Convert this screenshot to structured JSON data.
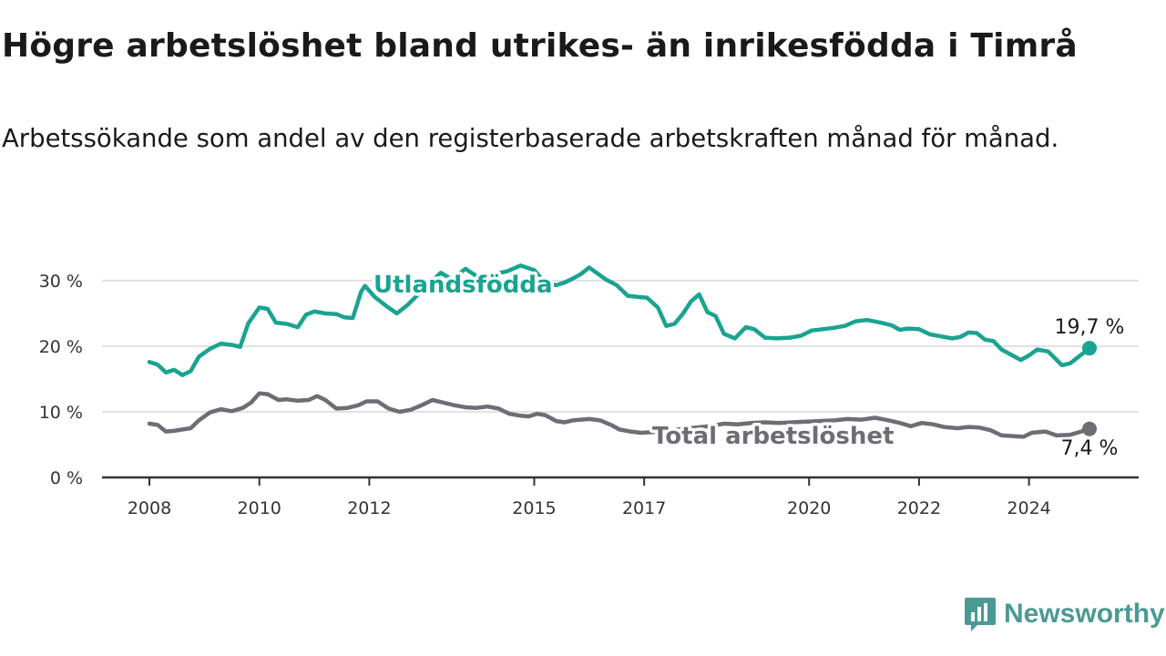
{
  "title": "Högre arbetslöshet bland utrikes- än inrikesfödda i Timrå",
  "subtitle": "Arbetssökande som andel av den registerbaserade arbetskraften månad för månad.",
  "brand": "Newsworthy",
  "colors": {
    "utlandsfodda": "#1aa391",
    "total": "#6e6d75",
    "grid": "#d9d9d9",
    "axis": "#333333",
    "brand": "#4a9a94"
  },
  "chart_data": {
    "type": "line",
    "y_ticks": [
      {
        "value": 0,
        "label": "0 %"
      },
      {
        "value": 10,
        "label": "10 %"
      },
      {
        "value": 20,
        "label": "20 %"
      },
      {
        "value": 30,
        "label": "30 %"
      }
    ],
    "x_ticks": [
      {
        "value": 2008,
        "label": "2008"
      },
      {
        "value": 2010,
        "label": "2010"
      },
      {
        "value": 2012,
        "label": "2012"
      },
      {
        "value": 2015,
        "label": "2015"
      },
      {
        "value": 2017,
        "label": "2017"
      },
      {
        "value": 2020,
        "label": "2020"
      },
      {
        "value": 2022,
        "label": "2022"
      },
      {
        "value": 2024,
        "label": "2024"
      }
    ],
    "ylim": [
      0,
      30
    ],
    "grid": true,
    "series": [
      {
        "name": "Utlandsfödda",
        "end_label": "19,7 %",
        "points": [
          [
            2008.0,
            17.6
          ],
          [
            2008.15,
            17.2
          ],
          [
            2008.3,
            16.0
          ],
          [
            2008.45,
            16.4
          ],
          [
            2008.6,
            15.6
          ],
          [
            2008.75,
            16.2
          ],
          [
            2008.9,
            18.4
          ],
          [
            2009.1,
            19.6
          ],
          [
            2009.3,
            20.4
          ],
          [
            2009.5,
            20.2
          ],
          [
            2009.65,
            19.9
          ],
          [
            2009.8,
            23.5
          ],
          [
            2010.0,
            25.9
          ],
          [
            2010.15,
            25.7
          ],
          [
            2010.3,
            23.6
          ],
          [
            2010.5,
            23.4
          ],
          [
            2010.7,
            22.9
          ],
          [
            2010.85,
            24.8
          ],
          [
            2011.0,
            25.3
          ],
          [
            2011.2,
            25.0
          ],
          [
            2011.4,
            24.9
          ],
          [
            2011.55,
            24.4
          ],
          [
            2011.7,
            24.3
          ],
          [
            2011.85,
            28.3
          ],
          [
            2011.92,
            29.2
          ],
          [
            2012.1,
            27.5
          ],
          [
            2012.3,
            26.2
          ],
          [
            2012.5,
            25.0
          ],
          [
            2012.7,
            26.3
          ],
          [
            2012.9,
            28.0
          ],
          [
            2013.1,
            29.6
          ],
          [
            2013.3,
            31.2
          ],
          [
            2013.5,
            30.2
          ],
          [
            2013.75,
            31.8
          ],
          [
            2014.0,
            30.4
          ],
          [
            2014.25,
            31.0
          ],
          [
            2014.5,
            31.4
          ],
          [
            2014.75,
            32.3
          ],
          [
            2015.0,
            31.6
          ],
          [
            2015.2,
            29.6
          ],
          [
            2015.4,
            29.3
          ],
          [
            2015.55,
            29.7
          ],
          [
            2015.7,
            30.3
          ],
          [
            2015.85,
            31.0
          ],
          [
            2016.0,
            32.0
          ],
          [
            2016.1,
            31.4
          ],
          [
            2016.3,
            30.2
          ],
          [
            2016.5,
            29.3
          ],
          [
            2016.7,
            27.7
          ],
          [
            2016.9,
            27.5
          ],
          [
            2017.05,
            27.4
          ],
          [
            2017.25,
            25.9
          ],
          [
            2017.4,
            23.1
          ],
          [
            2017.55,
            23.4
          ],
          [
            2017.7,
            24.9
          ],
          [
            2017.85,
            26.8
          ],
          [
            2018.0,
            27.9
          ],
          [
            2018.15,
            25.2
          ],
          [
            2018.3,
            24.6
          ],
          [
            2018.45,
            21.9
          ],
          [
            2018.65,
            21.2
          ],
          [
            2018.85,
            22.9
          ],
          [
            2019.0,
            22.6
          ],
          [
            2019.2,
            21.3
          ],
          [
            2019.4,
            21.2
          ],
          [
            2019.65,
            21.3
          ],
          [
            2019.85,
            21.6
          ],
          [
            2020.05,
            22.4
          ],
          [
            2020.25,
            22.6
          ],
          [
            2020.45,
            22.8
          ],
          [
            2020.65,
            23.1
          ],
          [
            2020.85,
            23.8
          ],
          [
            2021.05,
            24.0
          ],
          [
            2021.3,
            23.6
          ],
          [
            2021.5,
            23.2
          ],
          [
            2021.65,
            22.5
          ],
          [
            2021.8,
            22.7
          ],
          [
            2022.0,
            22.6
          ],
          [
            2022.2,
            21.8
          ],
          [
            2022.4,
            21.5
          ],
          [
            2022.6,
            21.2
          ],
          [
            2022.75,
            21.4
          ],
          [
            2022.9,
            22.1
          ],
          [
            2023.05,
            22.0
          ],
          [
            2023.2,
            21.0
          ],
          [
            2023.35,
            20.8
          ],
          [
            2023.5,
            19.5
          ],
          [
            2023.7,
            18.6
          ],
          [
            2023.85,
            17.9
          ],
          [
            2024.0,
            18.6
          ],
          [
            2024.15,
            19.5
          ],
          [
            2024.35,
            19.2
          ],
          [
            2024.6,
            17.1
          ],
          [
            2024.75,
            17.4
          ],
          [
            2024.95,
            18.7
          ],
          [
            2025.1,
            19.7
          ]
        ]
      },
      {
        "name": "Total arbetslöshet",
        "end_label": "7,4 %",
        "points": [
          [
            2008.0,
            8.2
          ],
          [
            2008.15,
            8.0
          ],
          [
            2008.3,
            7.0
          ],
          [
            2008.45,
            7.1
          ],
          [
            2008.6,
            7.3
          ],
          [
            2008.75,
            7.5
          ],
          [
            2008.9,
            8.7
          ],
          [
            2009.1,
            9.9
          ],
          [
            2009.3,
            10.4
          ],
          [
            2009.5,
            10.1
          ],
          [
            2009.7,
            10.6
          ],
          [
            2009.85,
            11.4
          ],
          [
            2010.0,
            12.8
          ],
          [
            2010.15,
            12.7
          ],
          [
            2010.35,
            11.8
          ],
          [
            2010.5,
            11.9
          ],
          [
            2010.7,
            11.7
          ],
          [
            2010.9,
            11.8
          ],
          [
            2011.05,
            12.4
          ],
          [
            2011.2,
            11.8
          ],
          [
            2011.4,
            10.5
          ],
          [
            2011.6,
            10.6
          ],
          [
            2011.8,
            11.0
          ],
          [
            2011.95,
            11.6
          ],
          [
            2012.15,
            11.6
          ],
          [
            2012.35,
            10.5
          ],
          [
            2012.55,
            10.0
          ],
          [
            2012.75,
            10.3
          ],
          [
            2012.95,
            11.0
          ],
          [
            2013.15,
            11.8
          ],
          [
            2013.35,
            11.4
          ],
          [
            2013.55,
            11.0
          ],
          [
            2013.75,
            10.7
          ],
          [
            2013.95,
            10.6
          ],
          [
            2014.15,
            10.8
          ],
          [
            2014.35,
            10.5
          ],
          [
            2014.55,
            9.7
          ],
          [
            2014.75,
            9.4
          ],
          [
            2014.9,
            9.3
          ],
          [
            2015.05,
            9.7
          ],
          [
            2015.2,
            9.5
          ],
          [
            2015.4,
            8.6
          ],
          [
            2015.55,
            8.4
          ],
          [
            2015.7,
            8.7
          ],
          [
            2015.85,
            8.8
          ],
          [
            2016.0,
            8.9
          ],
          [
            2016.2,
            8.7
          ],
          [
            2016.4,
            8.0
          ],
          [
            2016.55,
            7.3
          ],
          [
            2016.75,
            7.0
          ],
          [
            2016.95,
            6.8
          ],
          [
            2017.15,
            6.9
          ],
          [
            2017.4,
            7.1
          ],
          [
            2017.7,
            7.4
          ],
          [
            2017.95,
            7.6
          ],
          [
            2018.2,
            7.8
          ],
          [
            2018.45,
            8.2
          ],
          [
            2018.7,
            8.1
          ],
          [
            2018.95,
            8.3
          ],
          [
            2019.2,
            8.4
          ],
          [
            2019.45,
            8.3
          ],
          [
            2019.7,
            8.4
          ],
          [
            2019.95,
            8.5
          ],
          [
            2020.2,
            8.6
          ],
          [
            2020.45,
            8.7
          ],
          [
            2020.7,
            8.9
          ],
          [
            2020.95,
            8.8
          ],
          [
            2021.2,
            9.1
          ],
          [
            2021.45,
            8.7
          ],
          [
            2021.65,
            8.3
          ],
          [
            2021.85,
            7.8
          ],
          [
            2022.05,
            8.3
          ],
          [
            2022.25,
            8.1
          ],
          [
            2022.45,
            7.7
          ],
          [
            2022.7,
            7.5
          ],
          [
            2022.9,
            7.7
          ],
          [
            2023.1,
            7.6
          ],
          [
            2023.3,
            7.2
          ],
          [
            2023.5,
            6.4
          ],
          [
            2023.7,
            6.3
          ],
          [
            2023.9,
            6.2
          ],
          [
            2024.05,
            6.8
          ],
          [
            2024.3,
            7.0
          ],
          [
            2024.5,
            6.4
          ],
          [
            2024.75,
            6.5
          ],
          [
            2024.95,
            7.0
          ],
          [
            2025.1,
            7.4
          ]
        ]
      }
    ]
  }
}
